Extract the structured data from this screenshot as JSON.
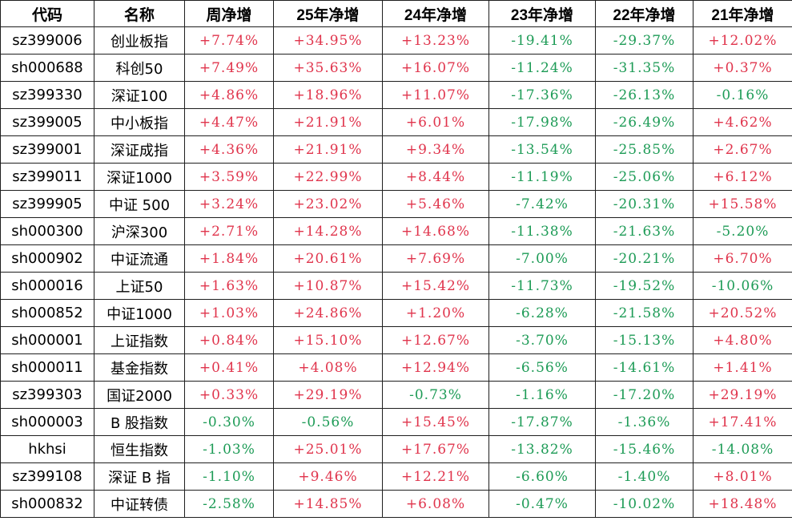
{
  "style": {
    "positive_color": "#e0344c",
    "negative_color": "#1d9b56",
    "text_color": "#000000",
    "grid_color": "#1f1f1f",
    "background_color": "#ffffff"
  },
  "chart_data": {
    "type": "table",
    "title": "",
    "columns": [
      "代码",
      "名称",
      "周净增",
      "25年净增",
      "24年净增",
      "23年净增",
      "22年净增",
      "21年净增"
    ],
    "rows": [
      [
        "sz399006",
        "创业板指",
        "+7.74%",
        "+34.95%",
        "+13.23%",
        "-19.41%",
        "-29.37%",
        "+12.02%"
      ],
      [
        "sh000688",
        "科创50",
        "+7.49%",
        "+35.63%",
        "+16.07%",
        "-11.24%",
        "-31.35%",
        "+0.37%"
      ],
      [
        "sz399330",
        "深证100",
        "+4.86%",
        "+18.96%",
        "+11.07%",
        "-17.36%",
        "-26.13%",
        "-0.16%"
      ],
      [
        "sz399005",
        "中小板指",
        "+4.47%",
        "+21.91%",
        "+6.01%",
        "-17.98%",
        "-26.49%",
        "+4.62%"
      ],
      [
        "sz399001",
        "深证成指",
        "+4.36%",
        "+21.91%",
        "+9.34%",
        "-13.54%",
        "-25.85%",
        "+2.67%"
      ],
      [
        "sz399011",
        "深证1000",
        "+3.59%",
        "+22.99%",
        "+8.44%",
        "-11.19%",
        "-25.06%",
        "+6.12%"
      ],
      [
        "sz399905",
        "中证 500",
        "+3.24%",
        "+23.02%",
        "+5.46%",
        "-7.42%",
        "-20.31%",
        "+15.58%"
      ],
      [
        "sh000300",
        "沪深300",
        "+2.71%",
        "+14.28%",
        "+14.68%",
        "-11.38%",
        "-21.63%",
        "-5.20%"
      ],
      [
        "sh000902",
        "中证流通",
        "+1.84%",
        "+20.61%",
        "+7.69%",
        "-7.00%",
        "-20.21%",
        "+6.70%"
      ],
      [
        "sh000016",
        "上证50",
        "+1.63%",
        "+10.87%",
        "+15.42%",
        "-11.73%",
        "-19.52%",
        "-10.06%"
      ],
      [
        "sh000852",
        "中证1000",
        "+1.03%",
        "+24.86%",
        "+1.20%",
        "-6.28%",
        "-21.58%",
        "+20.52%"
      ],
      [
        "sh000001",
        "上证指数",
        "+0.84%",
        "+15.10%",
        "+12.67%",
        "-3.70%",
        "-15.13%",
        "+4.80%"
      ],
      [
        "sh000011",
        "基金指数",
        "+0.41%",
        "+4.08%",
        "+12.94%",
        "-6.56%",
        "-14.61%",
        "+1.41%"
      ],
      [
        "sz399303",
        "国证2000",
        "+0.33%",
        "+29.19%",
        "-0.73%",
        "-1.16%",
        "-17.20%",
        "+29.19%"
      ],
      [
        "sh000003",
        "B 股指数",
        "-0.30%",
        "-0.56%",
        "+15.45%",
        "-17.87%",
        "-1.36%",
        "+17.41%"
      ],
      [
        "hkhsi",
        "恒生指数",
        "-1.03%",
        "+25.01%",
        "+17.67%",
        "-13.82%",
        "-15.46%",
        "-14.08%"
      ],
      [
        "sz399108",
        "深证 B 指",
        "-1.10%",
        "+9.46%",
        "+12.21%",
        "-6.60%",
        "-1.40%",
        "+8.01%"
      ],
      [
        "sh000832",
        "中证转债",
        "-2.58%",
        "+14.85%",
        "+6.08%",
        "-0.47%",
        "-10.02%",
        "+18.48%"
      ]
    ]
  }
}
